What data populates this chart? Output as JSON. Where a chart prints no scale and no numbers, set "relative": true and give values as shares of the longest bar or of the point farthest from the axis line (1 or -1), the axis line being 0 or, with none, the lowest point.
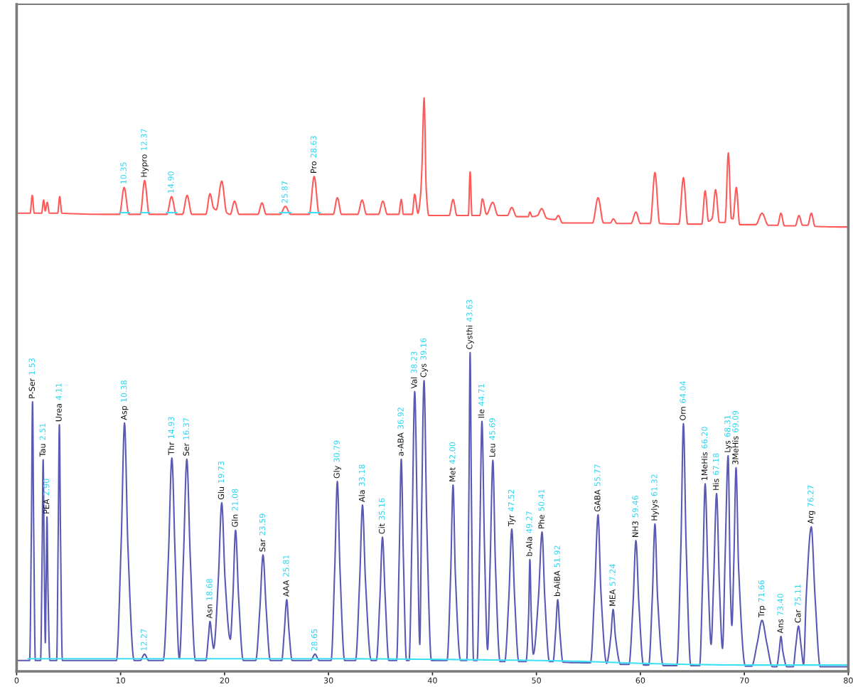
{
  "chart_data": {
    "type": "line",
    "relative": true,
    "xlim": [
      0,
      80
    ],
    "xticks": [
      0,
      10,
      20,
      30,
      40,
      50,
      60,
      70,
      80
    ],
    "series": [
      {
        "color": "#ff5a5a",
        "x": [
          0.14,
          1.3,
          1.5,
          1.7,
          2.4,
          2.6,
          2.75,
          2.95,
          3.15,
          3.95,
          4.14,
          4.35,
          9.9,
          10.34,
          10.8,
          11.9,
          12.31,
          12.75,
          14.45,
          14.9,
          15.35,
          15.95,
          16.4,
          16.85,
          18.2,
          18.6,
          18.95,
          19.2,
          19.73,
          20.2,
          20.55,
          20.96,
          21.4,
          23.2,
          23.6,
          24.0,
          25.35,
          25.85,
          26.35,
          28.15,
          28.62,
          29.1,
          30.45,
          30.85,
          31.25,
          32.8,
          33.23,
          33.65,
          34.8,
          35.23,
          35.65,
          36.75,
          37.0,
          37.2,
          38.05,
          38.29,
          38.6,
          38.85,
          38.97,
          39.2,
          39.4,
          39.65,
          41.6,
          41.98,
          42.35,
          43.45,
          43.62,
          43.8,
          44.55,
          44.8,
          45.2,
          45.8,
          46.3,
          47.2,
          47.63,
          48.1,
          49.2,
          49.37,
          49.6,
          50.1,
          50.5,
          51.0,
          51.8,
          52.1,
          52.5,
          55.4,
          55.93,
          56.45,
          57.1,
          57.4,
          57.75,
          59.1,
          59.57,
          60.0,
          60.95,
          61.4,
          61.85,
          63.7,
          64.14,
          64.55,
          65.9,
          66.23,
          66.55,
          66.9,
          67.23,
          67.6,
          68.15,
          68.46,
          68.75,
          68.9,
          69.23,
          69.55,
          71.1,
          71.7,
          72.3,
          73.2,
          73.52,
          73.85,
          74.9,
          75.25,
          75.6,
          76.1,
          76.44,
          76.8,
          80
        ],
        "values": [
          0.799,
          0.799,
          0.83,
          0.799,
          0.799,
          0.822,
          0.803,
          0.818,
          0.799,
          0.799,
          0.828,
          0.799,
          0.797,
          0.844,
          0.797,
          0.797,
          0.856,
          0.797,
          0.797,
          0.828,
          0.797,
          0.797,
          0.83,
          0.797,
          0.797,
          0.833,
          0.808,
          0.805,
          0.855,
          0.8,
          0.797,
          0.82,
          0.797,
          0.797,
          0.817,
          0.797,
          0.797,
          0.811,
          0.797,
          0.797,
          0.863,
          0.797,
          0.797,
          0.826,
          0.797,
          0.797,
          0.822,
          0.797,
          0.797,
          0.82,
          0.797,
          0.797,
          0.823,
          0.797,
          0.797,
          0.832,
          0.799,
          0.83,
          0.871,
          1.0,
          0.84,
          0.795,
          0.795,
          0.823,
          0.795,
          0.795,
          0.871,
          0.795,
          0.795,
          0.824,
          0.797,
          0.818,
          0.795,
          0.795,
          0.809,
          0.793,
          0.793,
          0.801,
          0.793,
          0.795,
          0.807,
          0.79,
          0.788,
          0.795,
          0.782,
          0.782,
          0.826,
          0.782,
          0.782,
          0.789,
          0.781,
          0.781,
          0.801,
          0.781,
          0.781,
          0.87,
          0.781,
          0.78,
          0.861,
          0.78,
          0.78,
          0.838,
          0.785,
          0.79,
          0.84,
          0.783,
          0.783,
          0.904,
          0.79,
          0.789,
          0.844,
          0.779,
          0.779,
          0.799,
          0.778,
          0.778,
          0.799,
          0.777,
          0.777,
          0.795,
          0.778,
          0.778,
          0.799,
          0.776,
          0.775
        ]
      },
      {
        "color": "#5a5ab4",
        "x": [
          0,
          1.25,
          1.42,
          1.53,
          1.64,
          1.8,
          2.3,
          2.45,
          2.55,
          2.66,
          2.76,
          2.84,
          2.92,
          3.02,
          3.2,
          3.85,
          4.0,
          4.11,
          4.22,
          4.4,
          9.6,
          10.05,
          10.38,
          10.7,
          11.3,
          11.9,
          12.3,
          12.7,
          14.1,
          14.6,
          14.93,
          15.25,
          15.65,
          16.05,
          16.37,
          16.7,
          17.2,
          18.2,
          18.45,
          18.6,
          18.78,
          18.95,
          19.4,
          19.73,
          20.05,
          20.55,
          20.8,
          21.06,
          21.35,
          21.8,
          23.0,
          23.4,
          23.7,
          24.0,
          24.4,
          25.5,
          25.75,
          25.98,
          26.2,
          26.5,
          28.3,
          28.7,
          29.1,
          30.25,
          30.6,
          30.85,
          31.1,
          31.55,
          32.6,
          33.0,
          33.27,
          33.55,
          34.1,
          34.6,
          34.95,
          35.19,
          35.45,
          35.8,
          36.55,
          36.8,
          37.0,
          37.2,
          37.5,
          37.75,
          38.05,
          38.29,
          38.55,
          38.78,
          38.95,
          39.19,
          39.45,
          39.9,
          41.4,
          41.75,
          41.98,
          42.2,
          42.7,
          43.3,
          43.5,
          43.62,
          43.75,
          43.95,
          44.3,
          44.55,
          44.76,
          45.0,
          45.3,
          45.55,
          45.81,
          46.05,
          46.5,
          46.95,
          47.35,
          47.63,
          47.9,
          48.3,
          49.0,
          49.25,
          49.37,
          49.5,
          49.7,
          50.2,
          50.54,
          50.8,
          51.25,
          51.6,
          51.85,
          52.05,
          52.25,
          52.55,
          55.2,
          55.6,
          55.93,
          56.2,
          56.75,
          57.15,
          57.38,
          57.6,
          58.1,
          58.9,
          59.3,
          59.57,
          59.85,
          60.3,
          60.8,
          61.15,
          61.4,
          61.65,
          62.2,
          63.5,
          63.9,
          64.14,
          64.4,
          64.85,
          65.7,
          66.0,
          66.23,
          66.5,
          66.8,
          67.05,
          67.33,
          67.6,
          67.9,
          68.15,
          68.44,
          68.65,
          68.8,
          69.0,
          69.2,
          69.45,
          70.1,
          70.7,
          71.25,
          71.7,
          72.15,
          72.7,
          73.1,
          73.35,
          73.52,
          73.7,
          74.1,
          74.7,
          74.95,
          75.21,
          75.45,
          75.7,
          75.95,
          76.44,
          76.8,
          77.3,
          80
        ],
        "values": [
          0.019,
          0.019,
          0.25,
          0.47,
          0.25,
          0.019,
          0.019,
          0.2,
          0.369,
          0.18,
          0.05,
          0.16,
          0.269,
          0.14,
          0.019,
          0.019,
          0.24,
          0.43,
          0.24,
          0.019,
          0.019,
          0.22,
          0.433,
          0.22,
          0.019,
          0.019,
          0.03,
          0.019,
          0.019,
          0.2,
          0.372,
          0.2,
          0.022,
          0.2,
          0.37,
          0.2,
          0.019,
          0.019,
          0.06,
          0.087,
          0.06,
          0.04,
          0.16,
          0.294,
          0.16,
          0.056,
          0.13,
          0.246,
          0.13,
          0.019,
          0.019,
          0.11,
          0.203,
          0.11,
          0.019,
          0.019,
          0.07,
          0.125,
          0.07,
          0.019,
          0.019,
          0.03,
          0.019,
          0.019,
          0.18,
          0.331,
          0.18,
          0.019,
          0.019,
          0.16,
          0.29,
          0.16,
          0.019,
          0.019,
          0.13,
          0.234,
          0.13,
          0.019,
          0.019,
          0.2,
          0.37,
          0.2,
          0.019,
          0.019,
          0.26,
          0.488,
          0.25,
          0.047,
          0.27,
          0.507,
          0.26,
          0.019,
          0.019,
          0.17,
          0.325,
          0.17,
          0.019,
          0.019,
          0.3,
          0.556,
          0.3,
          0.019,
          0.019,
          0.23,
          0.436,
          0.22,
          0.038,
          0.19,
          0.368,
          0.19,
          0.017,
          0.017,
          0.13,
          0.248,
          0.13,
          0.017,
          0.017,
          0.1,
          0.195,
          0.1,
          0.03,
          0.13,
          0.243,
          0.13,
          0.017,
          0.017,
          0.07,
          0.125,
          0.07,
          0.016,
          0.015,
          0.14,
          0.273,
          0.14,
          0.014,
          0.06,
          0.108,
          0.06,
          0.012,
          0.012,
          0.12,
          0.228,
          0.12,
          0.011,
          0.011,
          0.13,
          0.257,
          0.13,
          0.01,
          0.01,
          0.22,
          0.432,
          0.22,
          0.01,
          0.01,
          0.17,
          0.327,
          0.17,
          0.047,
          0.16,
          0.31,
          0.15,
          0.04,
          0.2,
          0.376,
          0.15,
          0.08,
          0.2,
          0.355,
          0.18,
          0.009,
          0.009,
          0.05,
          0.089,
          0.05,
          0.008,
          0.008,
          0.035,
          0.061,
          0.035,
          0.008,
          0.008,
          0.045,
          0.079,
          0.045,
          0.012,
          0.13,
          0.252,
          0.13,
          0.008,
          0.008
        ]
      },
      {
        "color": "#3de0f5",
        "x": [
          1.1,
          20,
          30,
          40,
          45,
          50,
          55,
          60,
          65,
          70,
          80
        ],
        "values": [
          0.022,
          0.022,
          0.022,
          0.021,
          0.02,
          0.019,
          0.017,
          0.014,
          0.012,
          0.011,
          0.011
        ]
      },
      {
        "color": "#3de0f5",
        "x": [
          9.9,
          10.85,
          10.86,
          11.9,
          12.8,
          12.81,
          14.4,
          15.4,
          15.41,
          25.3,
          26.4,
          26.41,
          28.1,
          29.2
        ],
        "values": [
          0.8,
          0.8,
          null,
          0.8,
          0.8,
          null,
          0.8,
          0.8,
          null,
          0.8,
          0.8,
          null,
          0.8,
          0.8
        ]
      }
    ],
    "annotations": [
      {
        "text": "10.35",
        "x": 10.34,
        "y": 0.844
      },
      {
        "text": "Hypro 12.37",
        "x": 12.31,
        "y": 0.856
      },
      {
        "text": "14.90",
        "x": 14.9,
        "y": 0.828
      },
      {
        "text": "25.87",
        "x": 25.85,
        "y": 0.811
      },
      {
        "text": "Pro 28.63",
        "x": 28.62,
        "y": 0.863
      },
      {
        "text": "P-Ser 1.53",
        "x": 1.53,
        "y": 0.47
      },
      {
        "text": "Tau 2.51",
        "x": 2.55,
        "y": 0.369
      },
      {
        "text": "PEA 2.90",
        "x": 2.92,
        "y": 0.269
      },
      {
        "text": "Urea 4.11",
        "x": 4.11,
        "y": 0.43
      },
      {
        "text": "Asp 10.38",
        "x": 10.38,
        "y": 0.433
      },
      {
        "text": "12.27",
        "x": 12.3,
        "y": 0.03
      },
      {
        "text": "Thr 14.93",
        "x": 14.93,
        "y": 0.372
      },
      {
        "text": "Ser 16.37",
        "x": 16.37,
        "y": 0.37
      },
      {
        "text": "Asn 18.68",
        "x": 18.6,
        "y": 0.087
      },
      {
        "text": "Glu 19.73",
        "x": 19.73,
        "y": 0.294
      },
      {
        "text": "Gln 21.08",
        "x": 21.06,
        "y": 0.246
      },
      {
        "text": "Sar 23.59",
        "x": 23.7,
        "y": 0.203
      },
      {
        "text": "AAA 25.81",
        "x": 25.98,
        "y": 0.125
      },
      {
        "text": "28.65",
        "x": 28.7,
        "y": 0.03
      },
      {
        "text": "Gly 30.79",
        "x": 30.85,
        "y": 0.331
      },
      {
        "text": "Ala 33.18",
        "x": 33.27,
        "y": 0.29
      },
      {
        "text": "Cit 35.16",
        "x": 35.19,
        "y": 0.234
      },
      {
        "text": "a-ABA 36.92",
        "x": 37.0,
        "y": 0.37
      },
      {
        "text": "Val 38.23",
        "x": 38.29,
        "y": 0.488
      },
      {
        "text": "Cys 39.16",
        "x": 39.19,
        "y": 0.507
      },
      {
        "text": "Met 42.00",
        "x": 41.98,
        "y": 0.325
      },
      {
        "text": "Cysthi 43.63",
        "x": 43.62,
        "y": 0.556
      },
      {
        "text": "Ile 44.71",
        "x": 44.76,
        "y": 0.436
      },
      {
        "text": "Leu 45.69",
        "x": 45.81,
        "y": 0.368
      },
      {
        "text": "Tyr 47.52",
        "x": 47.63,
        "y": 0.248
      },
      {
        "text": "b-Ala 49.27",
        "x": 49.37,
        "y": 0.195
      },
      {
        "text": "Phe 50.41",
        "x": 50.54,
        "y": 0.243
      },
      {
        "text": "b-AiBA 51.92",
        "x": 52.05,
        "y": 0.125
      },
      {
        "text": "GABA 55.77",
        "x": 55.93,
        "y": 0.273
      },
      {
        "text": "MEA 57.24",
        "x": 57.38,
        "y": 0.108
      },
      {
        "text": "NH3 59.46",
        "x": 59.57,
        "y": 0.228
      },
      {
        "text": "Hylys 61.32",
        "x": 61.4,
        "y": 0.257
      },
      {
        "text": "Orn 64.04",
        "x": 64.14,
        "y": 0.432
      },
      {
        "text": "1MeHis 66.20",
        "x": 66.23,
        "y": 0.327
      },
      {
        "text": "His 67.18",
        "x": 67.33,
        "y": 0.31
      },
      {
        "text": "Lys 68.31",
        "x": 68.44,
        "y": 0.376
      },
      {
        "text": "3MeHis 69.09",
        "x": 69.2,
        "y": 0.355
      },
      {
        "text": "Trp 71.66",
        "x": 71.7,
        "y": 0.089
      },
      {
        "text": "Ans 73.40",
        "x": 73.52,
        "y": 0.061
      },
      {
        "text": "Car 75.11",
        "x": 75.21,
        "y": 0.079
      },
      {
        "text": "Arg 76.27",
        "x": 76.44,
        "y": 0.252
      }
    ]
  }
}
